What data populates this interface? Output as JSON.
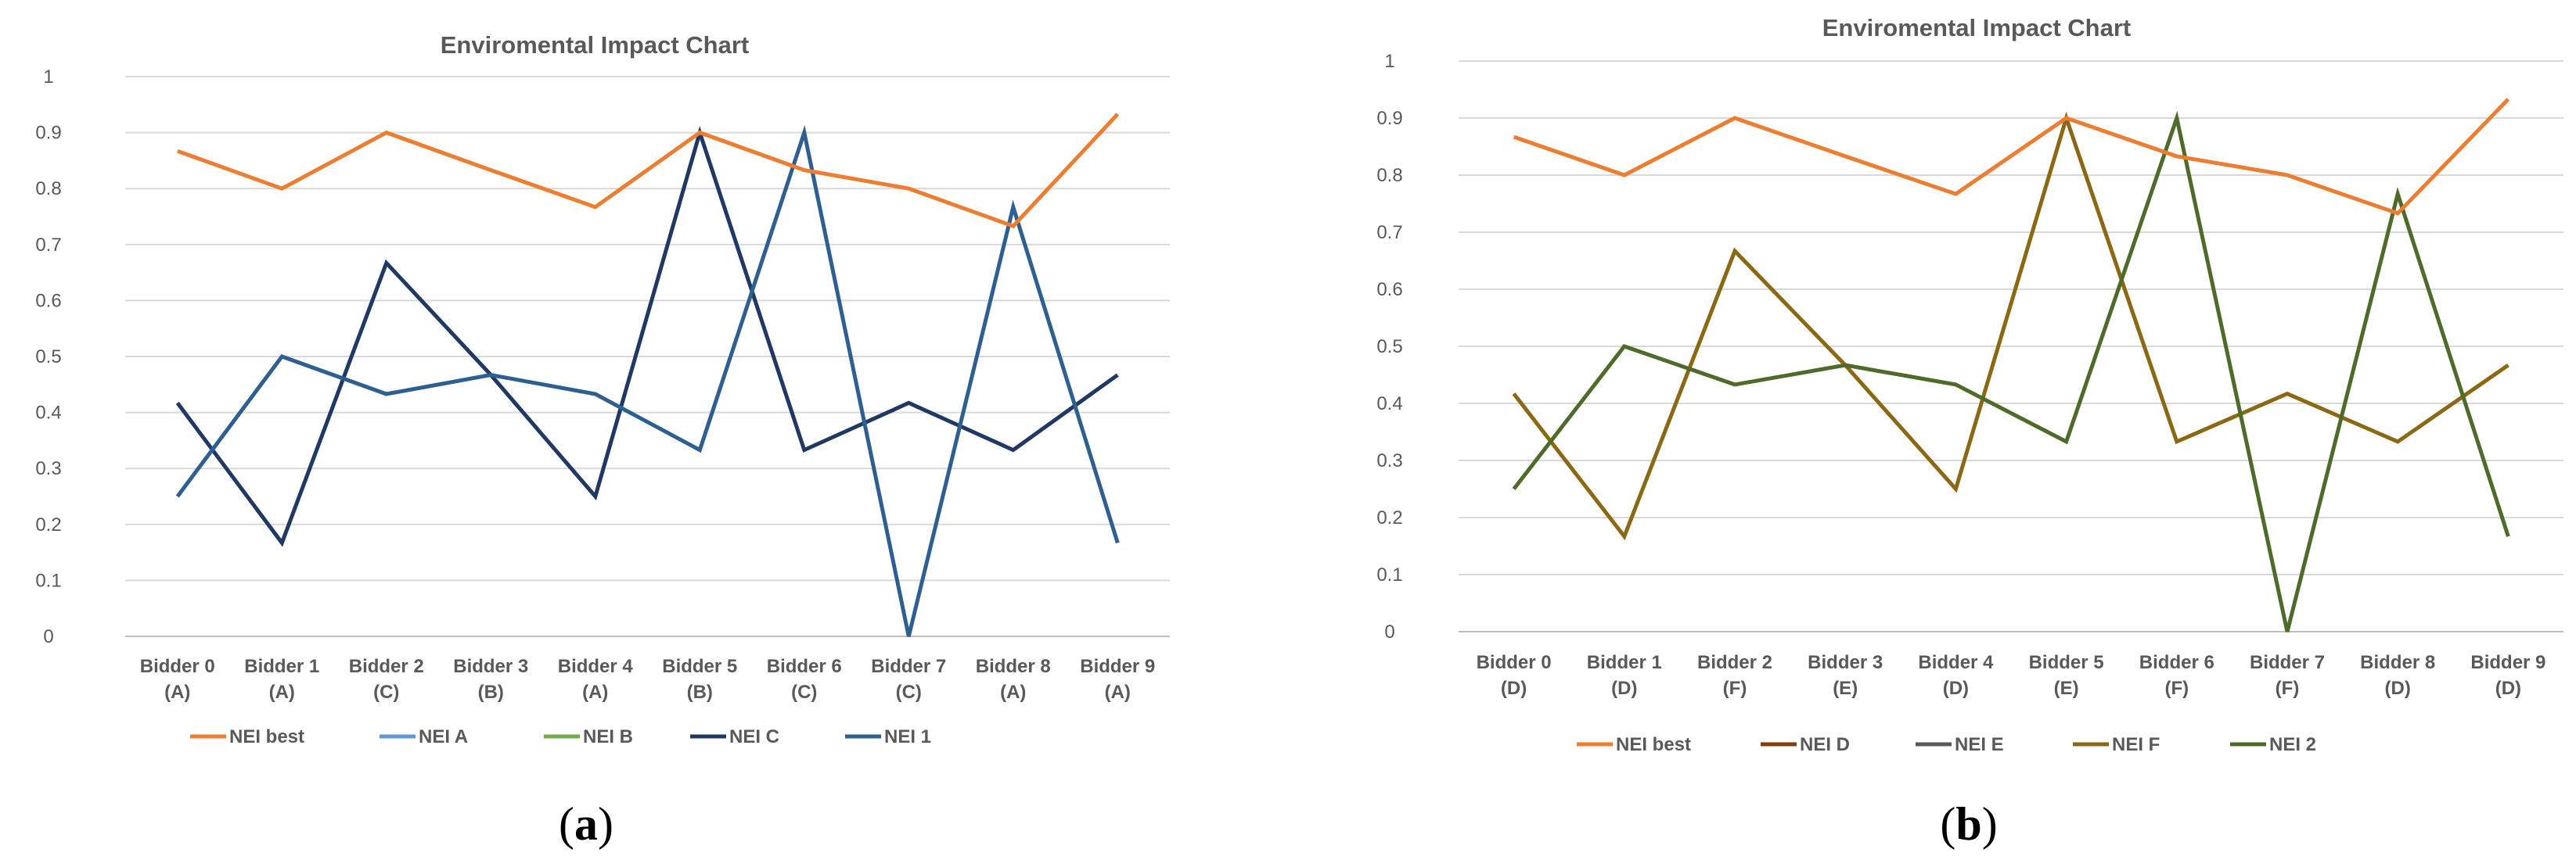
{
  "chart_data": [
    {
      "type": "line",
      "panel_label": "(a)",
      "title": "Enviromental Impact Chart",
      "xlabel": "",
      "ylabel": "",
      "ylim": [
        0,
        1
      ],
      "yticks": [
        "0",
        "0.1",
        "0.2",
        "0.3",
        "0.4",
        "0.5",
        "0.6",
        "0.7",
        "0.8",
        "0.9",
        "1"
      ],
      "grid": true,
      "legend_position": "bottom",
      "categories": [
        [
          "Bidder 0",
          "(A)"
        ],
        [
          "Bidder 1",
          "(A)"
        ],
        [
          "Bidder 2",
          "(C)"
        ],
        [
          "Bidder 3",
          "(B)"
        ],
        [
          "Bidder 4",
          "(A)"
        ],
        [
          "Bidder 5",
          "(B)"
        ],
        [
          "Bidder 6",
          "(C)"
        ],
        [
          "Bidder 7",
          "(C)"
        ],
        [
          "Bidder 8",
          "(A)"
        ],
        [
          "Bidder 9",
          "(A)"
        ]
      ],
      "series": [
        {
          "name": "NEI best",
          "color": "#ED7D31",
          "values": [
            0.867,
            0.8,
            0.9,
            0.833,
            0.767,
            0.9,
            0.833,
            0.8,
            0.733,
            0.933
          ]
        },
        {
          "name": "NEI A",
          "color": "#5B9BD5",
          "values": null
        },
        {
          "name": "NEI B",
          "color": "#70AD47",
          "values": null
        },
        {
          "name": "NEI C",
          "color": "#1F3864",
          "values": [
            0.417,
            0.167,
            0.667,
            0.467,
            0.25,
            0.9,
            0.333,
            0.417,
            0.333,
            0.467
          ]
        },
        {
          "name": "NEI 1",
          "color": "#2E5F91",
          "values": [
            0.25,
            0.5,
            0.433,
            0.467,
            0.433,
            0.333,
            0.9,
            0.0,
            0.767,
            0.167
          ]
        }
      ]
    },
    {
      "type": "line",
      "panel_label": "(b)",
      "title": "Enviromental Impact Chart",
      "xlabel": "",
      "ylabel": "",
      "ylim": [
        0,
        1
      ],
      "yticks": [
        "0",
        "0.1",
        "0.2",
        "0.3",
        "0.4",
        "0.5",
        "0.6",
        "0.7",
        "0.8",
        "0.9",
        "1"
      ],
      "grid": true,
      "legend_position": "bottom",
      "categories": [
        [
          "Bidder 0",
          "(D)"
        ],
        [
          "Bidder 1",
          "(D)"
        ],
        [
          "Bidder 2",
          "(F)"
        ],
        [
          "Bidder 3",
          "(E)"
        ],
        [
          "Bidder 4",
          "(D)"
        ],
        [
          "Bidder 5",
          "(E)"
        ],
        [
          "Bidder 6",
          "(F)"
        ],
        [
          "Bidder 7",
          "(F)"
        ],
        [
          "Bidder 8",
          "(D)"
        ],
        [
          "Bidder 9",
          "(D)"
        ]
      ],
      "series": [
        {
          "name": "NEI best",
          "color": "#ED7D31",
          "values": [
            0.867,
            0.8,
            0.9,
            0.833,
            0.767,
            0.9,
            0.833,
            0.8,
            0.733,
            0.933
          ]
        },
        {
          "name": "NEI D",
          "color": "#843C0C",
          "values": null
        },
        {
          "name": "NEI E",
          "color": "#595959",
          "values": null
        },
        {
          "name": "NEI F",
          "color": "#8B6914",
          "values": [
            0.417,
            0.167,
            0.667,
            0.467,
            0.25,
            0.9,
            0.333,
            0.417,
            0.333,
            0.467
          ]
        },
        {
          "name": "NEI 2",
          "color": "#4E6B2A",
          "values": [
            0.25,
            0.5,
            0.433,
            0.467,
            0.433,
            0.333,
            0.9,
            0.0,
            0.767,
            0.167
          ]
        }
      ]
    }
  ]
}
